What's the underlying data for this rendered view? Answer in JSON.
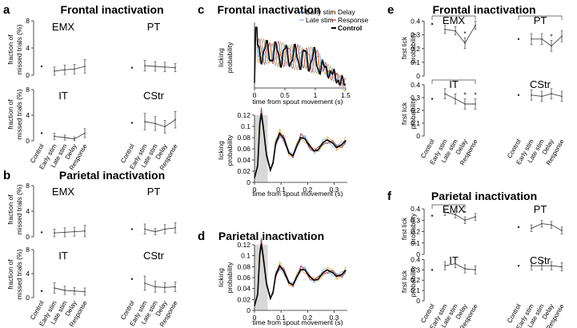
{
  "figure": {
    "panel_letters": [
      "a",
      "b",
      "c",
      "d",
      "e",
      "f"
    ],
    "titles": {
      "a": "Frontal inactivation",
      "b": "Parietal inactivation",
      "c": "Frontal inactivation",
      "d": "Parietal inactivation",
      "e": "Frontal inactivation",
      "f": "Parietal inactivation"
    },
    "genotypes": [
      "EMX",
      "PT",
      "IT",
      "CStr"
    ],
    "conditions": [
      "Control",
      "Early stim",
      "Late stim",
      "Delay",
      "Response"
    ]
  },
  "chart_data": [
    {
      "id": "a",
      "type": "line",
      "title": "Frontal inactivation",
      "ylabel": "fraction of missed trials (%)",
      "ylim": [
        0,
        8
      ],
      "yticks": [
        0,
        4,
        8
      ],
      "categories": [
        "Control",
        "Early stim",
        "Late stim",
        "Delay",
        "Response"
      ],
      "plots": [
        {
          "name": "EMX",
          "control": 1.3,
          "values": [
            0.6,
            0.8,
            0.9,
            1.3
          ],
          "errors": [
            0.6,
            0.7,
            0.7,
            1.0
          ]
        },
        {
          "name": "PT",
          "control": 1.1,
          "values": [
            1.4,
            1.3,
            1.2,
            1.1
          ],
          "errors": [
            0.8,
            0.7,
            0.7,
            0.6
          ]
        },
        {
          "name": "IT",
          "control": 1.2,
          "values": [
            0.7,
            0.5,
            0.3,
            1.2
          ],
          "errors": [
            0.5,
            0.4,
            0.3,
            0.7
          ]
        },
        {
          "name": "CStr",
          "control": 2.8,
          "values": [
            3.0,
            2.7,
            2.2,
            3.3
          ],
          "errors": [
            1.3,
            1.1,
            1.0,
            1.3
          ]
        }
      ]
    },
    {
      "id": "b",
      "type": "line",
      "title": "Parietal inactivation",
      "ylabel": "fraction of missed trials (%)",
      "ylim": [
        0,
        8
      ],
      "yticks": [
        0,
        4,
        8
      ],
      "categories": [
        "Control",
        "Early stim",
        "Late stim",
        "Delay",
        "Response"
      ],
      "plots": [
        {
          "name": "EMX",
          "control": 0.7,
          "values": [
            0.6,
            0.7,
            0.8,
            0.9
          ],
          "errors": [
            0.6,
            0.7,
            0.7,
            0.9
          ]
        },
        {
          "name": "PT",
          "control": 1.2,
          "values": [
            1.2,
            0.8,
            1.2,
            1.4
          ],
          "errors": [
            0.8,
            0.5,
            0.7,
            0.8
          ]
        },
        {
          "name": "IT",
          "control": 1.1,
          "values": [
            1.6,
            1.2,
            1.1,
            1.0
          ],
          "errors": [
            0.9,
            0.7,
            0.6,
            0.6
          ]
        },
        {
          "name": "CStr",
          "control": 3.1,
          "values": [
            2.4,
            1.8,
            1.7,
            1.8
          ],
          "errors": [
            1.2,
            0.9,
            0.8,
            0.8
          ]
        }
      ]
    },
    {
      "id": "c",
      "type": "line",
      "title": "Frontal inactivation",
      "xlabel": "time from spout movement (s)",
      "ylabel": "licking probability",
      "xlim": [
        0,
        1.5
      ],
      "xticks": [
        0,
        0.5,
        1,
        1.5
      ],
      "legend": [
        "Early stim",
        "Delay",
        "Late stim",
        "Response",
        "Control"
      ],
      "series_colors": {
        "Early stim": "#3a8fd8",
        "Delay": "#f0a020",
        "Late stim": "#7fb2e0",
        "Response": "#c83030",
        "Control": "#000000"
      },
      "zoom_inset": {
        "xlim": [
          0,
          0.35
        ],
        "ylim": [
          0,
          0.12
        ],
        "xticks": [
          0,
          0.1,
          0.2,
          0.3
        ],
        "yticks": [
          0,
          0.02,
          0.04,
          0.06,
          0.08,
          0.1,
          0.12
        ],
        "shaded_window_s": [
          0,
          0.05
        ],
        "control_x": [
          0,
          0.012,
          0.02,
          0.026,
          0.033,
          0.045,
          0.06,
          0.07,
          0.08,
          0.095,
          0.11,
          0.13,
          0.145,
          0.16,
          0.175,
          0.19,
          0.21,
          0.225,
          0.24,
          0.26,
          0.275,
          0.295,
          0.31,
          0.33,
          0.345
        ],
        "control_y": [
          0.008,
          0.03,
          0.105,
          0.123,
          0.1,
          0.05,
          0.022,
          0.035,
          0.07,
          0.088,
          0.078,
          0.052,
          0.048,
          0.066,
          0.08,
          0.078,
          0.064,
          0.056,
          0.058,
          0.072,
          0.076,
          0.07,
          0.062,
          0.068,
          0.075
        ]
      }
    },
    {
      "id": "d",
      "type": "line",
      "title": "Parietal inactivation",
      "xlabel": "time from spout movement (s)",
      "ylabel": "licking probability",
      "xlim": [
        0,
        0.35
      ],
      "ylim": [
        0,
        0.12
      ],
      "xticks": [
        0,
        0.1,
        0.2,
        0.3
      ],
      "yticks": [
        0,
        0.02,
        0.04,
        0.06,
        0.08,
        0.1,
        0.12
      ],
      "shaded_window_s": [
        0,
        0.05
      ],
      "control_x": [
        0,
        0.012,
        0.02,
        0.026,
        0.033,
        0.045,
        0.06,
        0.07,
        0.08,
        0.095,
        0.11,
        0.13,
        0.145,
        0.16,
        0.175,
        0.19,
        0.21,
        0.225,
        0.24,
        0.26,
        0.275,
        0.295,
        0.31,
        0.33,
        0.345
      ],
      "control_y": [
        0.008,
        0.03,
        0.103,
        0.122,
        0.098,
        0.05,
        0.022,
        0.033,
        0.065,
        0.082,
        0.072,
        0.05,
        0.047,
        0.062,
        0.075,
        0.074,
        0.061,
        0.055,
        0.057,
        0.07,
        0.074,
        0.069,
        0.062,
        0.066,
        0.074
      ]
    },
    {
      "id": "e",
      "type": "line",
      "title": "Frontal inactivation",
      "ylabel": "first lick probability",
      "ylim": [
        0,
        0.45
      ],
      "yticks": [
        0,
        0.1,
        0.2,
        0.3,
        0.4
      ],
      "categories": [
        "Control",
        "Early stim",
        "Late stim",
        "Delay",
        "Response"
      ],
      "plots": [
        {
          "name": "EMX",
          "control": 0.38,
          "values": [
            0.34,
            0.33,
            0.24,
            0.37
          ],
          "errors": [
            0.03,
            0.03,
            0.04,
            0.03
          ],
          "significant": [
            "Delay"
          ],
          "comparison_bracket": [
            "Control",
            "Response"
          ]
        },
        {
          "name": "PT",
          "control": 0.27,
          "values": [
            0.27,
            0.27,
            0.22,
            0.29
          ],
          "errors": [
            0.04,
            0.04,
            0.04,
            0.04
          ],
          "significant": [
            "Delay"
          ],
          "comparison_bracket": [
            "Control",
            "Response"
          ]
        },
        {
          "name": "IT",
          "control": 0.29,
          "values": [
            0.33,
            0.29,
            0.25,
            0.25
          ],
          "errors": [
            0.04,
            0.04,
            0.04,
            0.04
          ],
          "significant": [
            "Delay",
            "Response"
          ],
          "comparison_bracket": [
            "Control",
            "Response"
          ]
        },
        {
          "name": "CStr",
          "control": 0.32,
          "values": [
            0.32,
            0.31,
            0.33,
            0.31
          ],
          "errors": [
            0.04,
            0.04,
            0.04,
            0.04
          ],
          "significant": []
        }
      ]
    },
    {
      "id": "f",
      "type": "line",
      "title": "Parietal inactivation",
      "ylabel": "first lick probability",
      "ylim": [
        0,
        0.45
      ],
      "yticks": [
        0,
        0.1,
        0.2,
        0.3,
        0.4
      ],
      "categories": [
        "Control",
        "Early stim",
        "Late stim",
        "Delay",
        "Response"
      ],
      "plots": [
        {
          "name": "EMX",
          "control": 0.34,
          "values": [
            0.37,
            0.35,
            0.3,
            0.33
          ],
          "errors": [
            0.03,
            0.03,
            0.03,
            0.03
          ],
          "significant": [
            "Delay"
          ],
          "comparison_bracket": [
            "Control",
            "Delay"
          ]
        },
        {
          "name": "PT",
          "control": 0.24,
          "values": [
            0.23,
            0.27,
            0.26,
            0.21
          ],
          "errors": [
            0.03,
            0.03,
            0.03,
            0.03
          ],
          "significant": []
        },
        {
          "name": "IT",
          "control": 0.3,
          "values": [
            0.34,
            0.36,
            0.31,
            0.3
          ],
          "errors": [
            0.04,
            0.04,
            0.04,
            0.04
          ],
          "significant": []
        },
        {
          "name": "CStr",
          "control": 0.34,
          "values": [
            0.34,
            0.34,
            0.34,
            0.33
          ],
          "errors": [
            0.04,
            0.04,
            0.04,
            0.04
          ],
          "significant": []
        }
      ]
    }
  ]
}
